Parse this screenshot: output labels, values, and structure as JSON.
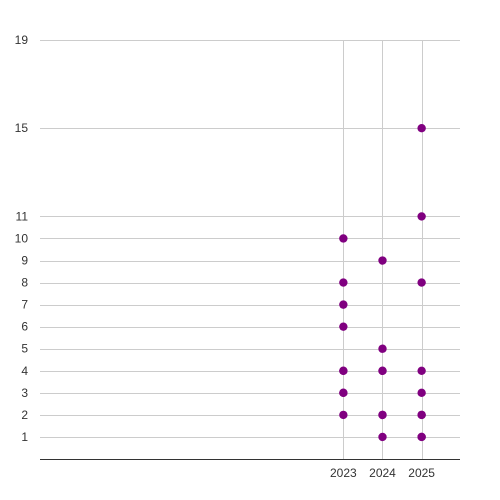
{
  "chart_data": {
    "type": "scatter",
    "title": "",
    "xlabel": "",
    "ylabel": "",
    "x_ticks": [
      2023,
      2024,
      2025
    ],
    "y_ticks": [
      1,
      2,
      3,
      4,
      5,
      6,
      7,
      8,
      9,
      10,
      11,
      15,
      19
    ],
    "xlim": [
      2015.25,
      2025.98
    ],
    "ylim": [
      0,
      19
    ],
    "grid": true,
    "legend": "none",
    "series": [
      {
        "color": "#800080",
        "points": [
          {
            "x": 2023,
            "y": 10
          },
          {
            "x": 2023,
            "y": 8
          },
          {
            "x": 2023,
            "y": 7
          },
          {
            "x": 2023,
            "y": 6
          },
          {
            "x": 2023,
            "y": 4
          },
          {
            "x": 2023,
            "y": 4
          },
          {
            "x": 2023,
            "y": 3
          },
          {
            "x": 2023,
            "y": 3
          },
          {
            "x": 2023,
            "y": 2
          },
          {
            "x": 2024,
            "y": 9
          },
          {
            "x": 2024,
            "y": 5
          },
          {
            "x": 2024,
            "y": 4
          },
          {
            "x": 2024,
            "y": 4
          },
          {
            "x": 2024,
            "y": 2
          },
          {
            "x": 2024,
            "y": 2
          },
          {
            "x": 2024,
            "y": 1
          },
          {
            "x": 2025,
            "y": 15
          },
          {
            "x": 2025,
            "y": 11
          },
          {
            "x": 2025,
            "y": 8
          },
          {
            "x": 2025,
            "y": 4
          },
          {
            "x": 2025,
            "y": 3
          },
          {
            "x": 2025,
            "y": 2
          },
          {
            "x": 2025,
            "y": 2
          },
          {
            "x": 2025,
            "y": 1
          },
          {
            "x": 2025,
            "y": 1
          }
        ]
      }
    ]
  }
}
